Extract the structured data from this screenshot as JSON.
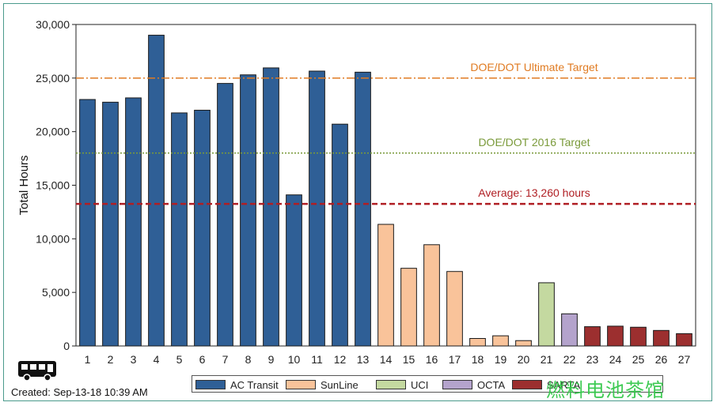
{
  "chart_data": {
    "type": "bar",
    "ylabel": "Total Hours",
    "ylim": [
      0,
      30000
    ],
    "yticks": [
      0,
      5000,
      10000,
      15000,
      20000,
      25000,
      30000
    ],
    "ytick_labels": [
      "0",
      "5,000",
      "10,000",
      "15,000",
      "20,000",
      "25,000",
      "30,000"
    ],
    "categories": [
      "1",
      "2",
      "3",
      "4",
      "5",
      "6",
      "7",
      "8",
      "9",
      "10",
      "11",
      "12",
      "13",
      "14",
      "15",
      "16",
      "17",
      "18",
      "19",
      "20",
      "21",
      "22",
      "23",
      "24",
      "25",
      "26",
      "27"
    ],
    "values": [
      23000,
      22750,
      23150,
      29000,
      21750,
      22000,
      24500,
      25300,
      25950,
      14100,
      25650,
      20700,
      25550,
      11350,
      7250,
      9450,
      6950,
      700,
      950,
      500,
      5900,
      3000,
      1800,
      1850,
      1750,
      1450,
      1150
    ],
    "groups": [
      "AC Transit",
      "AC Transit",
      "AC Transit",
      "AC Transit",
      "AC Transit",
      "AC Transit",
      "AC Transit",
      "AC Transit",
      "AC Transit",
      "AC Transit",
      "AC Transit",
      "AC Transit",
      "AC Transit",
      "SunLine",
      "SunLine",
      "SunLine",
      "SunLine",
      "SunLine",
      "SunLine",
      "SunLine",
      "UCI",
      "OCTA",
      "SARTA",
      "SARTA",
      "SARTA",
      "SARTA",
      "SARTA"
    ],
    "legend": [
      {
        "name": "AC Transit",
        "color": "#2f5f96"
      },
      {
        "name": "SunLine",
        "color": "#f9c39a"
      },
      {
        "name": "UCI",
        "color": "#c4d9a0"
      },
      {
        "name": "OCTA",
        "color": "#b4a3cc"
      },
      {
        "name": "SARTA",
        "color": "#9c2f2f"
      }
    ],
    "legend_placement": "bottom",
    "reference_lines": [
      {
        "label": "DOE/DOT Ultimate Target",
        "value": 25000,
        "color": "#e07b22",
        "style": "dashdot"
      },
      {
        "label": "DOE/DOT 2016 Target",
        "value": 18000,
        "color": "#7a9a3a",
        "style": "dotted"
      },
      {
        "label": "Average: 13,260 hours",
        "value": 13260,
        "color": "#b01f24",
        "style": "dashed"
      }
    ],
    "grid": false
  },
  "footer": {
    "created": "Created: Sep-13-18 10:39 AM",
    "icon": "bus-icon"
  },
  "watermark": "燃料电池茶馆"
}
